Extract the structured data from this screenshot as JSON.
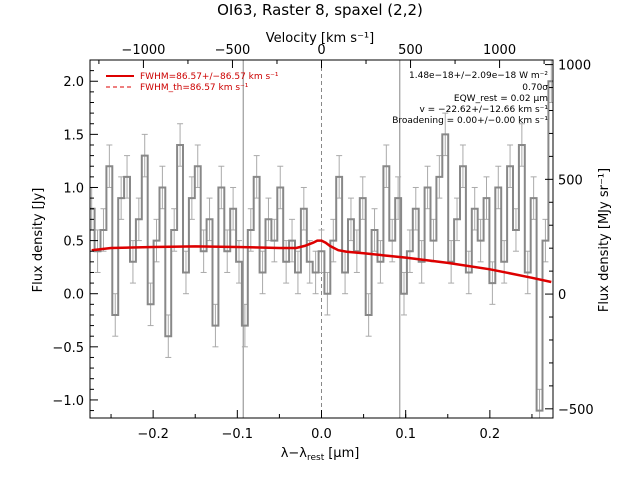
{
  "chart_data": {
    "type": "line",
    "title": "OI63, Raster 8, spaxel (2,2)",
    "xlabel_main": "λ−λ",
    "xlabel_sub": "rest",
    "xlabel_unit": "[μm]",
    "ylabel_left": "Flux density [Jy]",
    "ylabel_right": "Flux density [MJy sr⁻¹]",
    "xlabel_top": "Velocity [km s⁻¹]",
    "xlim": [
      -0.275,
      0.275
    ],
    "ylim": [
      -1.17,
      2.2
    ],
    "right_ylim": [
      -540,
      1020
    ],
    "top_xlim": [
      -1300,
      1300
    ],
    "x_ticks": [
      -0.2,
      -0.1,
      0.0,
      0.1,
      0.2
    ],
    "x_tick_labels": [
      "−0.2",
      "−0.1",
      "0.0",
      "0.1",
      "0.2"
    ],
    "y_ticks": [
      -1.0,
      -0.5,
      0.0,
      0.5,
      1.0,
      1.5,
      2.0
    ],
    "y_tick_labels": [
      "−1.0",
      "−0.5",
      "0.0",
      "0.5",
      "1.0",
      "1.5",
      "2.0"
    ],
    "top_ticks": [
      -1000,
      -500,
      0,
      500,
      1000
    ],
    "top_tick_labels": [
      "−1000",
      "−500",
      "0",
      "500",
      "1000"
    ],
    "right_ticks": [
      -500,
      0,
      500,
      1000
    ],
    "right_tick_labels": [
      "−500",
      "0",
      "500",
      "1000"
    ],
    "vertical_lines": [
      -0.093,
      0.0,
      0.093
    ],
    "legend": [
      {
        "label": "FWHM=86.57+/−86.57 km s⁻¹",
        "style": "solid"
      },
      {
        "label": "FWHM_th=86.57 km s⁻¹",
        "style": "dashed"
      }
    ],
    "annotations": [
      "1.48e−18+/−2.09e−18 W m⁻²",
      "0.70σ",
      "EQW_rest = 0.02 μm",
      "v = −22.62+/−12.66 km s⁻¹",
      "Broadening = 0.00+/−0.00 km s⁻¹"
    ],
    "colors": {
      "data": "#888888",
      "fit": "#dd0000",
      "axes": "#000000"
    },
    "series": [
      {
        "name": "data",
        "x": [
          -0.273,
          -0.266,
          -0.259,
          -0.252,
          -0.245,
          -0.238,
          -0.231,
          -0.224,
          -0.217,
          -0.21,
          -0.203,
          -0.196,
          -0.189,
          -0.182,
          -0.175,
          -0.168,
          -0.161,
          -0.154,
          -0.147,
          -0.14,
          -0.133,
          -0.126,
          -0.119,
          -0.112,
          -0.105,
          -0.098,
          -0.091,
          -0.084,
          -0.077,
          -0.07,
          -0.063,
          -0.056,
          -0.049,
          -0.042,
          -0.035,
          -0.028,
          -0.021,
          -0.014,
          -0.007,
          0.0,
          0.007,
          0.014,
          0.021,
          0.028,
          0.035,
          0.042,
          0.049,
          0.056,
          0.063,
          0.07,
          0.077,
          0.084,
          0.091,
          0.098,
          0.105,
          0.112,
          0.119,
          0.126,
          0.133,
          0.14,
          0.147,
          0.154,
          0.161,
          0.168,
          0.175,
          0.182,
          0.189,
          0.196,
          0.203,
          0.21,
          0.217,
          0.224,
          0.231,
          0.238,
          0.245,
          0.252,
          0.259,
          0.266,
          0.273
        ],
        "y": [
          0.8,
          0.4,
          0.6,
          1.2,
          -0.2,
          0.9,
          1.1,
          0.3,
          0.7,
          1.3,
          -0.1,
          0.5,
          1.0,
          -0.4,
          0.6,
          1.4,
          0.2,
          0.9,
          1.2,
          0.4,
          0.7,
          -0.3,
          1.0,
          0.4,
          0.8,
          0.3,
          -0.3,
          0.6,
          1.1,
          0.2,
          0.7,
          0.5,
          1.0,
          0.3,
          0.5,
          0.2,
          0.8,
          0.3,
          0.2,
          0.4,
          0.0,
          0.5,
          1.1,
          0.2,
          0.7,
          0.4,
          0.9,
          -0.2,
          0.6,
          0.3,
          1.2,
          0.5,
          0.9,
          0.0,
          0.4,
          0.8,
          0.3,
          1.0,
          0.5,
          1.1,
          1.5,
          0.3,
          0.7,
          1.2,
          0.2,
          0.8,
          0.5,
          0.9,
          0.1,
          1.0,
          0.3,
          1.2,
          0.6,
          1.4,
          0.2,
          0.9,
          -1.1,
          0.5,
          2.0
        ],
        "err": 0.2
      },
      {
        "name": "fit",
        "x": [
          -0.273,
          -0.25,
          -0.2,
          -0.15,
          -0.1,
          -0.05,
          -0.03,
          -0.02,
          -0.01,
          -0.005,
          0.0,
          0.005,
          0.01,
          0.02,
          0.03,
          0.05,
          0.1,
          0.15,
          0.2,
          0.25,
          0.273
        ],
        "y": [
          0.41,
          0.43,
          0.44,
          0.445,
          0.44,
          0.43,
          0.43,
          0.45,
          0.48,
          0.5,
          0.5,
          0.48,
          0.45,
          0.41,
          0.395,
          0.38,
          0.34,
          0.29,
          0.23,
          0.15,
          0.11
        ]
      }
    ]
  }
}
